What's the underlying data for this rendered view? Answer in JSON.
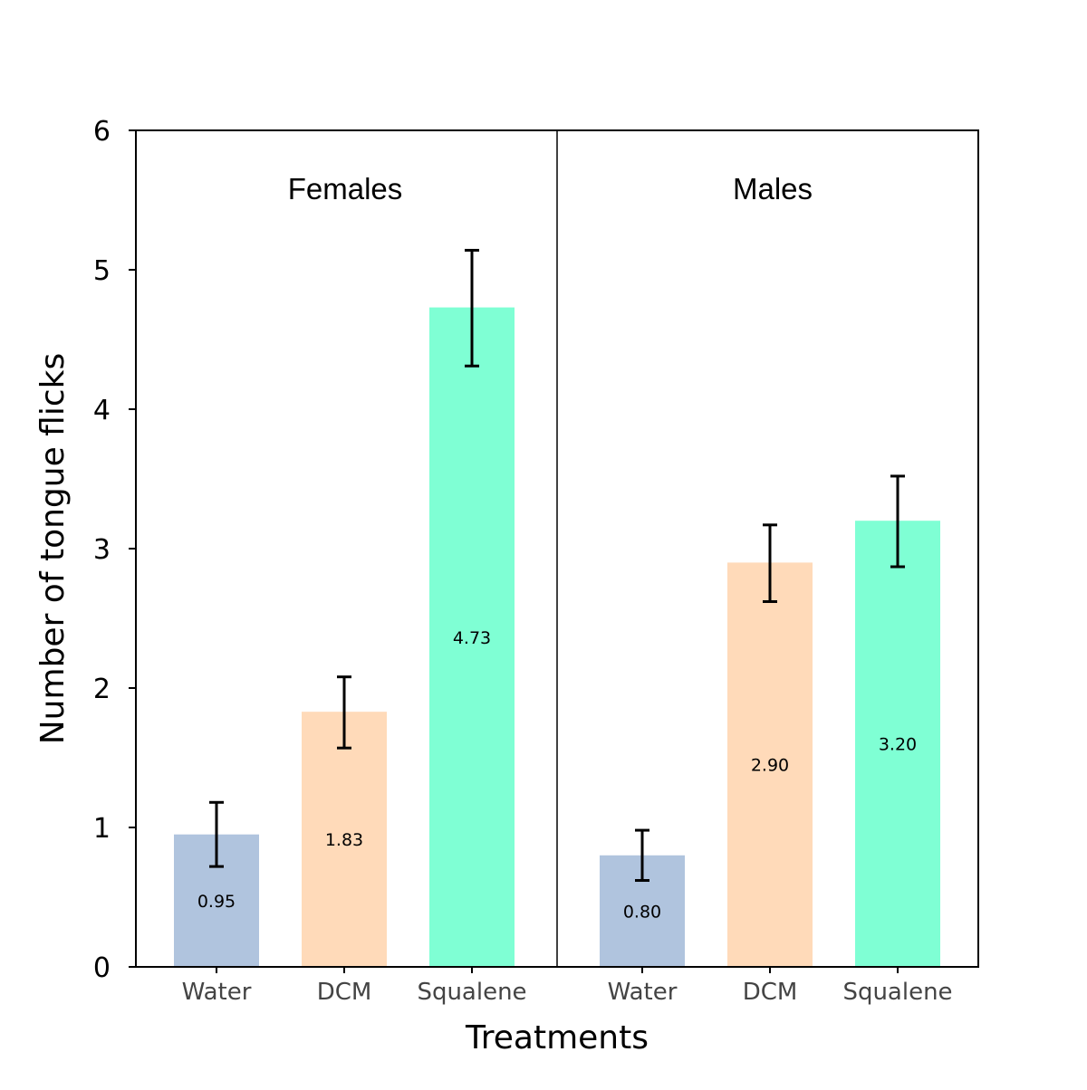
{
  "chart_data": {
    "type": "bar",
    "title": "",
    "xlabel": "Treatments",
    "ylabel": "Number of tongue flicks",
    "ylim": [
      0,
      6
    ],
    "yticks": [
      "0",
      "1",
      "2",
      "3",
      "4",
      "5",
      "6"
    ],
    "grid": false,
    "legend": "none",
    "groups": [
      {
        "name": "Females",
        "bars": [
          {
            "category": "Water",
            "value": 0.95,
            "label": "0.95",
            "err_low": 0.72,
            "err_high": 1.18,
            "color": "#b0c4de"
          },
          {
            "category": "DCM",
            "value": 1.83,
            "label": "1.83",
            "err_low": 1.57,
            "err_high": 2.08,
            "color": "#ffdab9"
          },
          {
            "category": "Squalene",
            "value": 4.73,
            "label": "4.73",
            "err_low": 4.31,
            "err_high": 5.14,
            "color": "#7fffd4"
          }
        ]
      },
      {
        "name": "Males",
        "bars": [
          {
            "category": "Water",
            "value": 0.8,
            "label": "0.80",
            "err_low": 0.62,
            "err_high": 0.98,
            "color": "#b0c4de"
          },
          {
            "category": "DCM",
            "value": 2.9,
            "label": "2.90",
            "err_low": 2.62,
            "err_high": 3.17,
            "color": "#ffdab9"
          },
          {
            "category": "Squalene",
            "value": 3.2,
            "label": "3.20",
            "err_low": 2.87,
            "err_high": 3.52,
            "color": "#7fffd4"
          }
        ]
      }
    ]
  }
}
